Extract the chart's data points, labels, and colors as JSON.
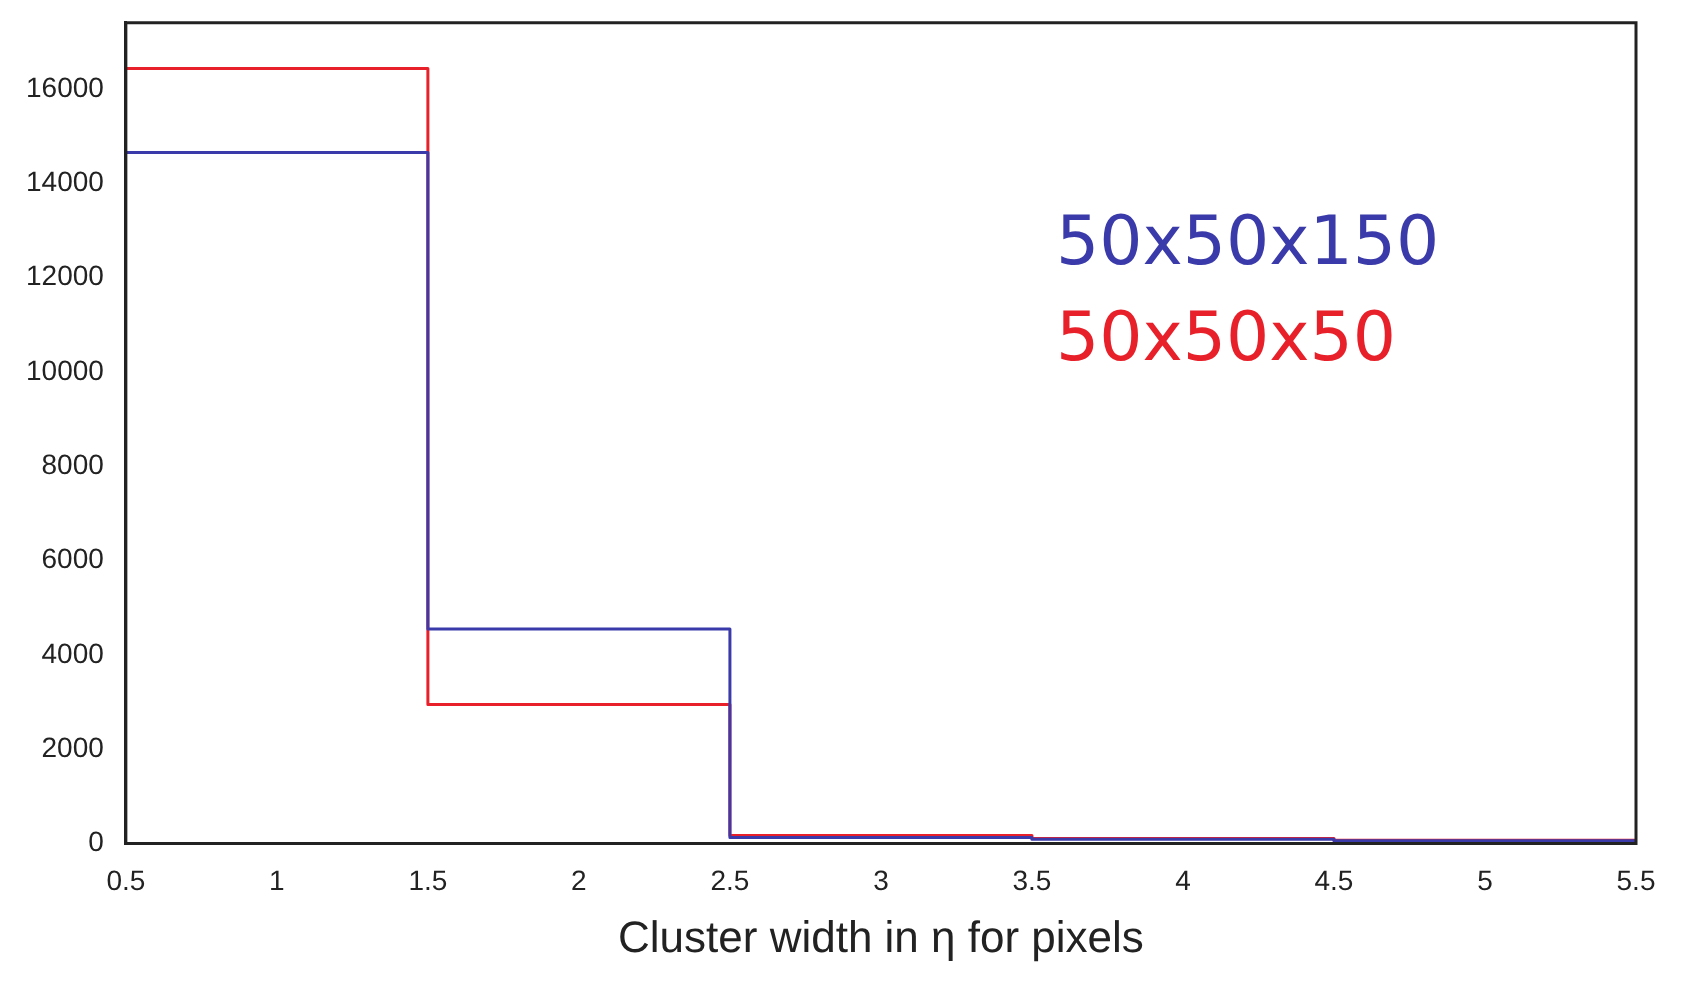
{
  "chart_data": {
    "type": "histogram",
    "xlabel": "Cluster width in η for pixels",
    "bins": [
      0.5,
      1.5,
      2.5,
      3.5,
      4.5,
      5.5
    ],
    "series": [
      {
        "name": "50x50x150",
        "color": "#3a3aaa",
        "values": [
          14650,
          4550,
          130,
          90,
          60
        ]
      },
      {
        "name": "50x50x50",
        "color": "#e8202a",
        "values": [
          16430,
          2950,
          170,
          110,
          70
        ]
      }
    ],
    "xlim": [
      0.5,
      5.5
    ],
    "xticks": [
      0.5,
      1,
      1.5,
      2,
      2.5,
      3,
      3.5,
      4,
      4.5,
      5,
      5.5
    ],
    "ylim": [
      0,
      17400
    ],
    "yticks": [
      0,
      2000,
      4000,
      6000,
      8000,
      10000,
      12000,
      14000,
      16000
    ],
    "grid": false,
    "legend": "top right"
  }
}
